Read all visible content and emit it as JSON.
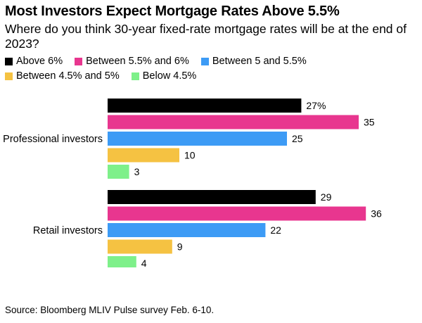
{
  "chart_data": {
    "type": "bar",
    "orientation": "horizontal",
    "title": "Most Investors Expect Mortgage Rates Above 5.5%",
    "subtitle": "Where do you think 30-year fixed-rate mortgage rates will be at the end of 2023?",
    "categories": [
      "Professional investors",
      "Retail investors"
    ],
    "series": [
      {
        "name": "Above 6%",
        "values": [
          27,
          29
        ],
        "color": "#000000"
      },
      {
        "name": "Between 5.5% and 6%",
        "values": [
          35,
          36
        ],
        "color": "#e8368f"
      },
      {
        "name": "Between 5 and 5.5%",
        "values": [
          25,
          22
        ],
        "color": "#3d9bf5"
      },
      {
        "name": "Between 4.5% and 5%",
        "values": [
          10,
          9
        ],
        "color": "#f5c242"
      },
      {
        "name": "Below 4.5%",
        "values": [
          3,
          4
        ],
        "color": "#7ef08a"
      }
    ],
    "data_labels": [
      [
        "27%",
        "35",
        "25",
        "10",
        "3"
      ],
      [
        "29",
        "36",
        "22",
        "9",
        "4"
      ]
    ],
    "legend_position": "top-left",
    "grid": false,
    "source": "Source: Bloomberg MLIV Pulse survey Feb. 6-10."
  }
}
